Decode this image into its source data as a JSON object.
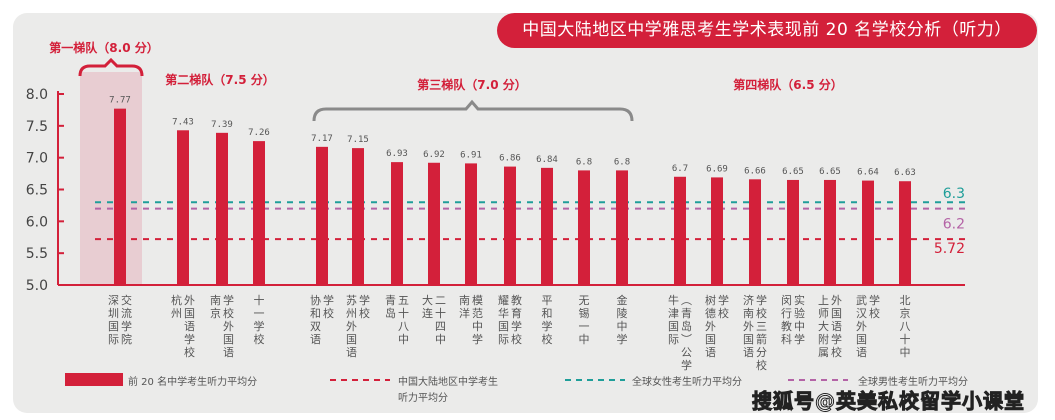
{
  "chart_data": {
    "type": "bar",
    "title": "中国大陆地区中学雅思考生学术表现前 20 名学校分析（听力）",
    "xlabel": "",
    "ylabel": "",
    "ylim": [
      5.0,
      8.0
    ],
    "yticks": [
      "8.0",
      "7.5",
      "7.0",
      "6.5",
      "6.0",
      "5.5",
      "5.0"
    ],
    "ytick_values": [
      8.0,
      7.5,
      7.0,
      6.5,
      6.0,
      5.5,
      5.0
    ],
    "grid": false,
    "categories": [
      [
        "深圳国际",
        "交流学院"
      ],
      [
        "杭州",
        "外国语学校"
      ],
      [
        "南京",
        "学校外国语"
      ],
      [
        "十一学校"
      ],
      [
        "协和双语",
        "学校"
      ],
      [
        "苏州外国语",
        "学校"
      ],
      [
        "青岛",
        "五十八中"
      ],
      [
        "大连",
        "二十四中"
      ],
      [
        "南洋",
        "模范中学"
      ],
      [
        "耀华国际",
        "教育学校"
      ],
      [
        "平和学校"
      ],
      [
        "无锡一中"
      ],
      [
        "金陵中学"
      ],
      [
        "牛津国际",
        "（青岛）公学"
      ],
      [
        "树德外国语",
        "学校"
      ],
      [
        "济南外国语",
        "学校三箭分校"
      ],
      [
        "闵行教科",
        "实验中学"
      ],
      [
        "上师大附属",
        "外国语学校"
      ],
      [
        "武汉外国语",
        "学校"
      ],
      [
        "北京八十中"
      ]
    ],
    "series": [
      {
        "name": "前 20 名中学考生听力平均分",
        "type": "bar",
        "color": "#d3203a",
        "values": [
          7.77,
          7.43,
          7.39,
          7.26,
          7.17,
          7.15,
          6.93,
          6.92,
          6.91,
          6.86,
          6.84,
          6.8,
          6.8,
          6.7,
          6.69,
          6.66,
          6.65,
          6.65,
          6.64,
          6.63
        ],
        "data_labels": [
          "7.77",
          "7.43",
          "7.39",
          "7.26",
          "7.17",
          "7.15",
          "6.93",
          "6.92",
          "6.91",
          "6.86",
          "6.84",
          "6.8",
          "6.8",
          "6.7",
          "6.69",
          "6.66",
          "6.65",
          "6.65",
          "6.64",
          "6.63"
        ]
      },
      {
        "name": "中国大陆地区中学考生听力平均分",
        "type": "hline",
        "color": "#d3203a",
        "value": 5.72,
        "label": "5.72"
      },
      {
        "name": "全球女性考生听力平均分",
        "type": "hline",
        "color": "#1f9e99",
        "value": 6.3,
        "label": "6.3"
      },
      {
        "name": "全球男性考生听力平均分",
        "type": "hline",
        "color": "#b463a6",
        "value": 6.2,
        "label": "6.2"
      }
    ],
    "tiers": [
      {
        "label": "第一梯队（8.0 分）",
        "from": 0,
        "to": 0,
        "color": "#d3203a"
      },
      {
        "label": "第二梯队（7.5 分）",
        "from": 1,
        "to": 3,
        "color": "#d3203a"
      },
      {
        "label": "第三梯队（7.0 分）",
        "from": 4,
        "to": 12,
        "color": "#d3203a",
        "brace_color": "#8a8a8a"
      },
      {
        "label": "第四梯队（6.5 分）",
        "from": 13,
        "to": 19,
        "color": "#d3203a"
      }
    ],
    "legend": {
      "placement": "bottom",
      "items": [
        {
          "label": "前 20 名中学考生听力平均分",
          "kind": "bar",
          "color": "#d3203a"
        },
        {
          "label": "中国大陆地区中学考生\n听力平均分",
          "kind": "dash",
          "color": "#d3203a"
        },
        {
          "label": "全球女性考生听力平均分",
          "kind": "dash",
          "color": "#1f9e99"
        },
        {
          "label": "全球男性考生听力平均分",
          "kind": "dash",
          "color": "#b463a6"
        }
      ]
    }
  },
  "watermark": "搜狐号@英美私校留学小课堂",
  "colors": {
    "accent": "#d3203a",
    "highlight_band": "#e8cdd2",
    "background": "#ebebea",
    "text": "#555555"
  }
}
